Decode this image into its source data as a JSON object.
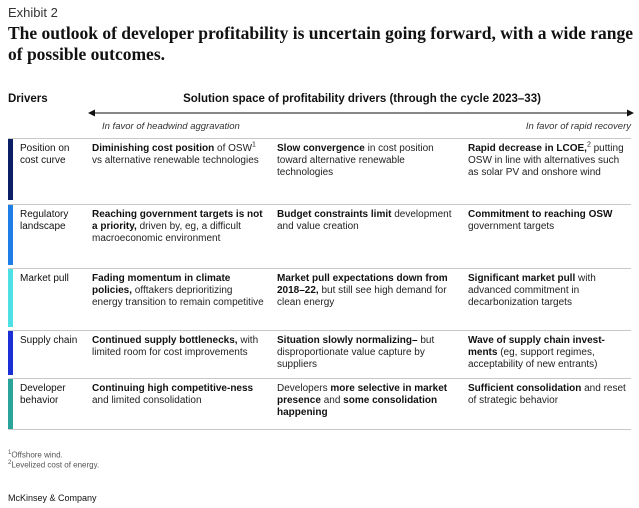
{
  "exhibit": "Exhibit 2",
  "title": "The outlook of developer profitability is uncertain going forward, with a wide range of possible outcomes.",
  "header": {
    "drivers": "Drivers",
    "solution_space": "Solution space of profitability drivers (through the cycle 2023–33)",
    "left_direction": "In favor of headwind aggravation",
    "right_direction": "In favor of rapid recovery"
  },
  "colors": {
    "row1": "#0b1f66",
    "row2": "#1f7ee6",
    "row3": "#4fe0e6",
    "row4": "#1a2fd6",
    "row5": "#2aa39b",
    "border": "#c8c8c8",
    "arrow": "#111111"
  },
  "rows": [
    {
      "driver": "Position on cost curve",
      "c1": {
        "bold": "Diminishing cost position",
        "text1": " of OSW",
        "sup": "1",
        "text2": " vs alternative renewable technologies"
      },
      "c2": {
        "bold": "Slow convergence",
        "text": " in cost position toward alternative renewable technologies"
      },
      "c3": {
        "bold": "Rapid decrease in LCOE,",
        "sup": "2",
        "text": " putting OSW in line with alternatives such as solar PV and onshore wind"
      }
    },
    {
      "driver": "Regulatory landscape",
      "c1": {
        "bold": "Reaching government targets is not a priority,",
        "text": " driven by, eg, a difficult macroeconomic environment"
      },
      "c2": {
        "bold": "Budget constraints limit",
        "text": " development and value creation"
      },
      "c3": {
        "bold": "Commitment to reaching OSW",
        "text": " government targets"
      }
    },
    {
      "driver": "Market pull",
      "c1": {
        "bold": "Fading momentum in climate policies,",
        "text": " offtakers deprioritizing energy transition to remain competitive"
      },
      "c2": {
        "bold": "Market pull expectations down from 2018–22,",
        "text": " but still see high demand for clean energy"
      },
      "c3": {
        "bold": "Significant market pull",
        "text": " with advanced commitment in decarbonization targets"
      }
    },
    {
      "driver": "Supply chain",
      "c1": {
        "bold": "Continued supply bottlenecks,",
        "text": " with limited room for cost improvements"
      },
      "c2": {
        "bold": "Situation slowly normalizing–",
        "text": " but disproportionate value capture by suppliers"
      },
      "c3": {
        "bold": "Wave of supply chain invest-ments",
        "text": " (eg, support regimes, acceptability of new entrants)"
      }
    },
    {
      "driver": "Developer behavior",
      "c1": {
        "bold": "Continuing high competitive-ness",
        "text": " and limited consolidation"
      },
      "c2": {
        "pre": "Developers ",
        "bold": "more selective in market presence",
        "mid": " and ",
        "bold2": "some consolidation happening"
      },
      "c3": {
        "bold": "Sufficient consolidation",
        "text": " and reset of strategic behavior"
      }
    }
  ],
  "footnotes": {
    "n1": "1",
    "t1": "Offshore wind.",
    "n2": "2",
    "t2": "Levelized cost of energy."
  },
  "brand": "McKinsey & Company"
}
